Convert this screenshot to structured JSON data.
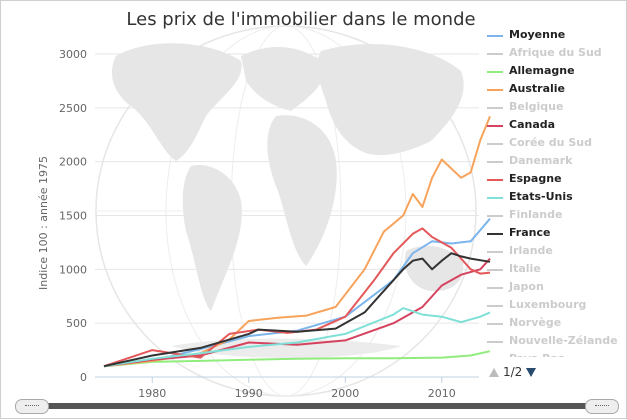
{
  "title": "Les prix de l'immobilier dans le monde",
  "pager": {
    "text": "1/2"
  },
  "chart_data": {
    "type": "line",
    "title": "Les prix de l'immobilier dans le monde",
    "ylabel": "Indice 100 : année 1975",
    "xlabel": "",
    "ylim": [
      0,
      3000
    ],
    "xlim": [
      1975,
      2015
    ],
    "yticks": [
      0,
      500,
      1000,
      1500,
      2000,
      2500,
      3000
    ],
    "xticks": [
      1980,
      1990,
      2000,
      2010
    ],
    "grid": true,
    "legend_position": "right",
    "series": [
      {
        "name": "Moyenne",
        "color": "#7cb5ec",
        "visible": true,
        "points": [
          [
            1975,
            100
          ],
          [
            1980,
            150
          ],
          [
            1985,
            260
          ],
          [
            1990,
            380
          ],
          [
            1995,
            430
          ],
          [
            2000,
            560
          ],
          [
            2005,
            900
          ],
          [
            2007,
            1150
          ],
          [
            2009,
            1260
          ],
          [
            2011,
            1240
          ],
          [
            2013,
            1260
          ],
          [
            2015,
            1470
          ]
        ]
      },
      {
        "name": "Afrique du Sud",
        "color": "#cccccc",
        "visible": false,
        "points": []
      },
      {
        "name": "Allemagne",
        "color": "#90ed7d",
        "visible": true,
        "points": [
          [
            1975,
            100
          ],
          [
            1980,
            140
          ],
          [
            1985,
            150
          ],
          [
            1990,
            160
          ],
          [
            1995,
            170
          ],
          [
            2000,
            175
          ],
          [
            2005,
            175
          ],
          [
            2010,
            180
          ],
          [
            2013,
            200
          ],
          [
            2015,
            240
          ]
        ]
      },
      {
        "name": "Australie",
        "color": "#f7a35c",
        "visible": true,
        "points": [
          [
            1975,
            100
          ],
          [
            1980,
            150
          ],
          [
            1985,
            220
          ],
          [
            1988,
            350
          ],
          [
            1990,
            520
          ],
          [
            1993,
            550
          ],
          [
            1996,
            570
          ],
          [
            1999,
            650
          ],
          [
            2002,
            1000
          ],
          [
            2004,
            1350
          ],
          [
            2006,
            1500
          ],
          [
            2007,
            1700
          ],
          [
            2008,
            1580
          ],
          [
            2009,
            1850
          ],
          [
            2010,
            2020
          ],
          [
            2012,
            1850
          ],
          [
            2013,
            1900
          ],
          [
            2014,
            2200
          ],
          [
            2015,
            2420
          ]
        ]
      },
      {
        "name": "Belgique",
        "color": "#cccccc",
        "visible": false,
        "points": []
      },
      {
        "name": "Canada",
        "color": "#d5435f",
        "visible": true,
        "points": [
          [
            1975,
            100
          ],
          [
            1980,
            160
          ],
          [
            1985,
            200
          ],
          [
            1990,
            320
          ],
          [
            1995,
            300
          ],
          [
            2000,
            340
          ],
          [
            2005,
            500
          ],
          [
            2008,
            650
          ],
          [
            2010,
            850
          ],
          [
            2012,
            950
          ],
          [
            2014,
            1000
          ],
          [
            2015,
            1100
          ]
        ]
      },
      {
        "name": "Corée du Sud",
        "color": "#cccccc",
        "visible": false,
        "points": []
      },
      {
        "name": "Danemark",
        "color": "#cccccc",
        "visible": false,
        "points": []
      },
      {
        "name": "Espagne",
        "color": "#e4585b",
        "visible": true,
        "points": [
          [
            1975,
            100
          ],
          [
            1980,
            250
          ],
          [
            1985,
            180
          ],
          [
            1988,
            400
          ],
          [
            1991,
            440
          ],
          [
            1994,
            410
          ],
          [
            1997,
            440
          ],
          [
            2000,
            560
          ],
          [
            2003,
            900
          ],
          [
            2005,
            1150
          ],
          [
            2007,
            1330
          ],
          [
            2008,
            1380
          ],
          [
            2009,
            1300
          ],
          [
            2011,
            1200
          ],
          [
            2013,
            1000
          ],
          [
            2014,
            960
          ],
          [
            2015,
            970
          ]
        ]
      },
      {
        "name": "Etats-Unis",
        "color": "#80e0d8",
        "visible": true,
        "points": [
          [
            1975,
            100
          ],
          [
            1980,
            170
          ],
          [
            1985,
            220
          ],
          [
            1990,
            280
          ],
          [
            1995,
            320
          ],
          [
            2000,
            400
          ],
          [
            2005,
            580
          ],
          [
            2006,
            640
          ],
          [
            2008,
            580
          ],
          [
            2010,
            560
          ],
          [
            2012,
            510
          ],
          [
            2014,
            560
          ],
          [
            2015,
            600
          ]
        ]
      },
      {
        "name": "Finlande",
        "color": "#cccccc",
        "visible": false,
        "points": []
      },
      {
        "name": "France",
        "color": "#333333",
        "visible": true,
        "points": [
          [
            1975,
            100
          ],
          [
            1980,
            200
          ],
          [
            1985,
            270
          ],
          [
            1990,
            400
          ],
          [
            1991,
            440
          ],
          [
            1995,
            420
          ],
          [
            1999,
            450
          ],
          [
            2002,
            600
          ],
          [
            2004,
            800
          ],
          [
            2006,
            1000
          ],
          [
            2007,
            1080
          ],
          [
            2008,
            1100
          ],
          [
            2009,
            1000
          ],
          [
            2010,
            1080
          ],
          [
            2011,
            1150
          ],
          [
            2012,
            1120
          ],
          [
            2013,
            1100
          ],
          [
            2015,
            1070
          ]
        ]
      },
      {
        "name": "Irlande",
        "color": "#cccccc",
        "visible": false,
        "points": []
      },
      {
        "name": "Italie",
        "color": "#cccccc",
        "visible": false,
        "points": []
      },
      {
        "name": "Japon",
        "color": "#cccccc",
        "visible": false,
        "points": []
      },
      {
        "name": "Luxembourg",
        "color": "#cccccc",
        "visible": false,
        "points": []
      },
      {
        "name": "Norvège",
        "color": "#cccccc",
        "visible": false,
        "points": []
      },
      {
        "name": "Nouvelle-Zélande",
        "color": "#cccccc",
        "visible": false,
        "points": []
      },
      {
        "name": "Pays-Bas",
        "color": "#cccccc",
        "visible": false,
        "points": []
      }
    ]
  }
}
